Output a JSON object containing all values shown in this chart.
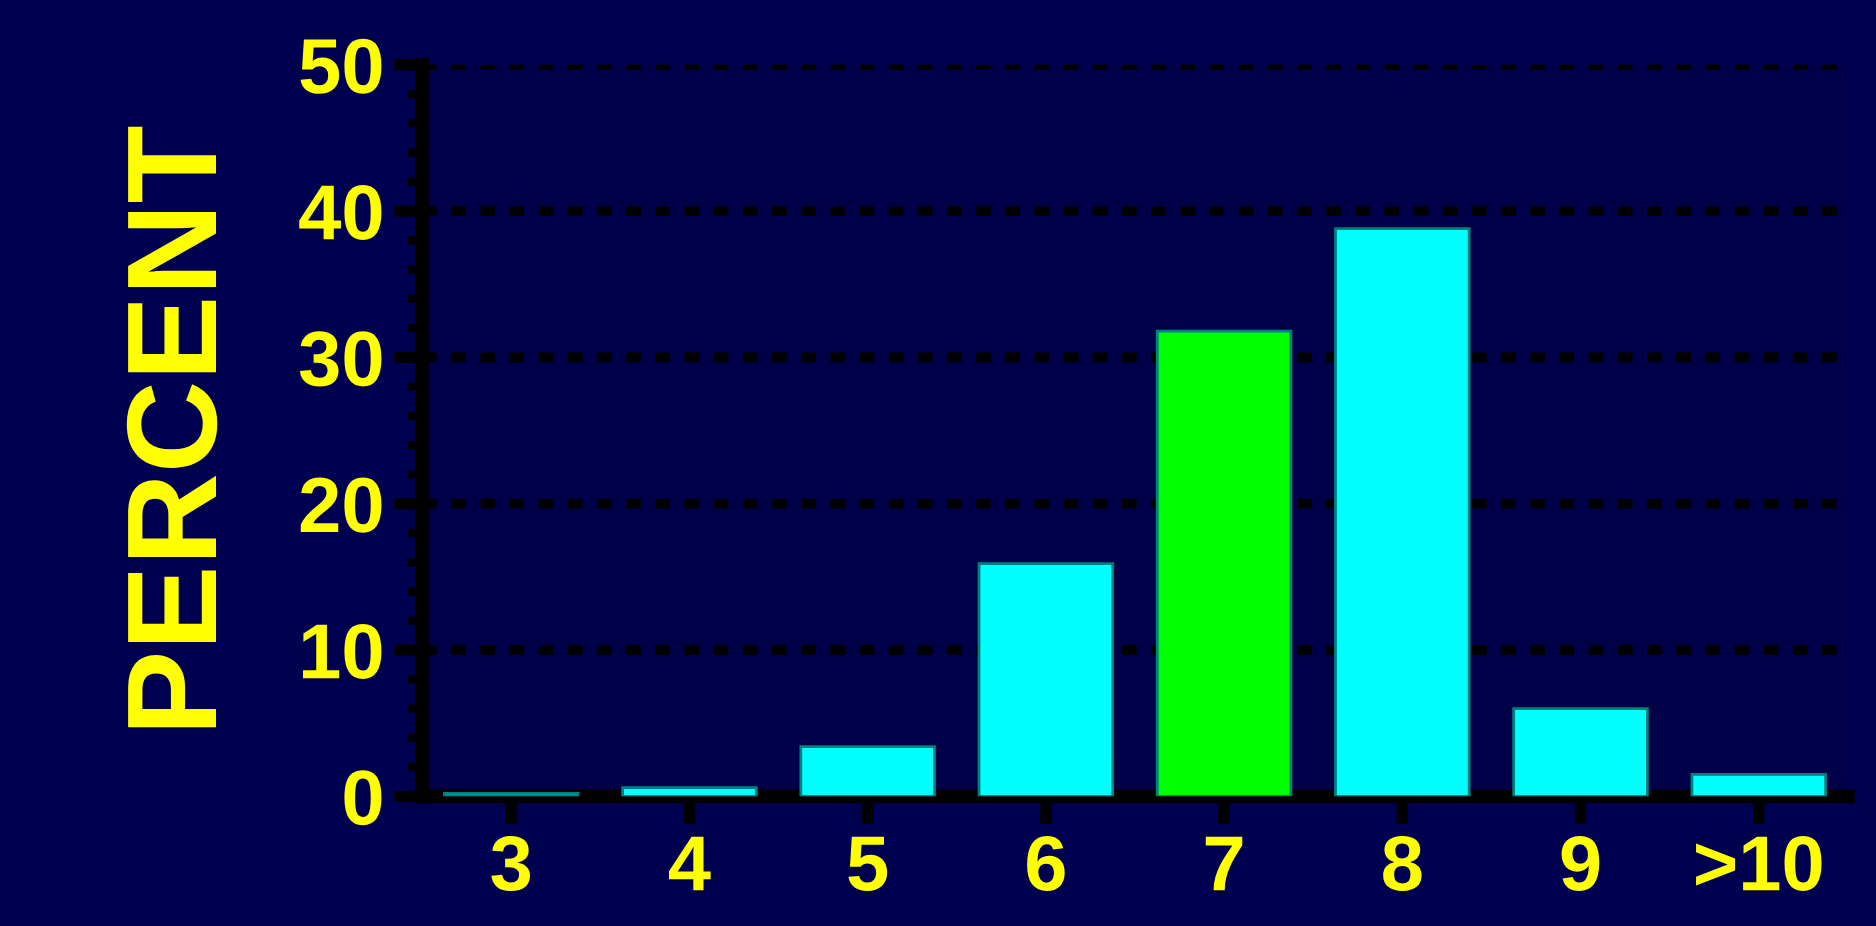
{
  "chart_data": {
    "type": "bar",
    "ylabel": "PERCENT",
    "categories": [
      "3",
      "4",
      "5",
      "6",
      "7",
      "8",
      "9",
      ">10"
    ],
    "values": [
      0.2,
      0.6,
      3.4,
      15.9,
      31.8,
      38.8,
      6.0,
      1.5
    ],
    "colors": [
      "#00ffff",
      "#00ffff",
      "#00ffff",
      "#00ffff",
      "#00ff00",
      "#00ffff",
      "#00ffff",
      "#00ffff"
    ],
    "ylim": [
      0,
      50
    ],
    "yticks": [
      0,
      10,
      20,
      30,
      40,
      50
    ],
    "grid": "y"
  }
}
